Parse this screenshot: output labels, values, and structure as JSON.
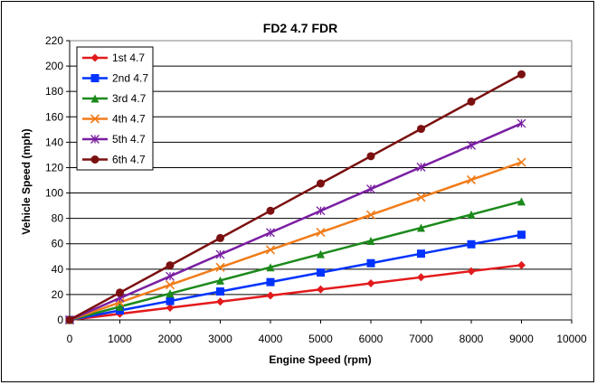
{
  "chart_data": {
    "type": "line",
    "title": "FD2 4.7 FDR",
    "xlabel": "Engine Speed (rpm)",
    "ylabel": "Vehicle Speed (mph)",
    "xlim": [
      0,
      10000
    ],
    "ylim": [
      0,
      220
    ],
    "x_ticks": [
      "0",
      "1000",
      "2000",
      "3000",
      "4000",
      "5000",
      "6000",
      "7000",
      "8000",
      "9000",
      "10000"
    ],
    "y_ticks": [
      "0",
      "20",
      "40",
      "60",
      "80",
      "100",
      "120",
      "140",
      "160",
      "180",
      "200",
      "220"
    ],
    "grid": "horizontal",
    "legend_position": "top-left",
    "x": [
      0,
      1000,
      2000,
      3000,
      4000,
      5000,
      6000,
      7000,
      8000,
      9000
    ],
    "series": [
      {
        "name": "1st 4.7",
        "color": "#e31a1c",
        "marker": "diamond",
        "values": [
          0,
          4.8,
          9.6,
          14.4,
          19.2,
          24.0,
          28.8,
          33.6,
          38.4,
          43.2
        ]
      },
      {
        "name": "2nd 4.7",
        "color": "#0033ff",
        "marker": "square",
        "values": [
          0,
          7.5,
          14.9,
          22.4,
          29.8,
          37.3,
          44.7,
          52.2,
          59.6,
          67.1
        ]
      },
      {
        "name": "3rd 4.7",
        "color": "#1b8a1b",
        "marker": "triangle",
        "values": [
          0,
          10.4,
          20.8,
          31.1,
          41.5,
          51.9,
          62.3,
          72.6,
          83.0,
          93.4
        ]
      },
      {
        "name": "4th 4.7",
        "color": "#f07c1a",
        "marker": "x",
        "values": [
          0,
          13.8,
          27.6,
          41.4,
          55.2,
          69.0,
          82.8,
          96.6,
          110.4,
          124.2
        ]
      },
      {
        "name": "5th 4.7",
        "color": "#7a1fa2",
        "marker": "star",
        "values": [
          0,
          17.2,
          34.4,
          51.6,
          68.8,
          86.0,
          103.2,
          120.4,
          137.6,
          154.8
        ]
      },
      {
        "name": "6th 4.7",
        "color": "#7b1010",
        "marker": "circle",
        "values": [
          0,
          21.5,
          43.0,
          64.5,
          86.0,
          107.5,
          129.0,
          150.5,
          172.0,
          193.5
        ]
      }
    ]
  }
}
